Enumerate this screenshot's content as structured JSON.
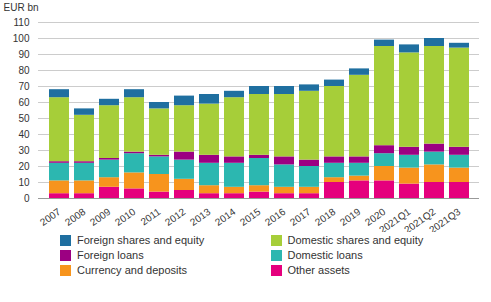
{
  "chart_data": {
    "type": "bar",
    "stacked": true,
    "grid": true,
    "y_label": "EUR bn",
    "categories": [
      "2007",
      "2008",
      "2009",
      "2010",
      "2011",
      "2012",
      "2013",
      "2014",
      "2015",
      "2016",
      "2017",
      "2018",
      "2019",
      "2020",
      "2021Q1",
      "2021Q2",
      "2021Q3"
    ],
    "ylim": [
      0,
      110
    ],
    "yticks": [
      0,
      10,
      20,
      30,
      40,
      50,
      60,
      70,
      80,
      90,
      100,
      110
    ],
    "series": [
      {
        "name": "Other assets",
        "color": "#e5007d",
        "values": [
          3,
          3,
          7,
          6,
          4,
          5,
          3,
          3,
          4,
          3,
          3,
          10,
          11,
          11,
          9,
          10,
          10
        ]
      },
      {
        "name": "Currency and deposits",
        "color": "#f7941d",
        "values": [
          8,
          8,
          6,
          10,
          11,
          7,
          5,
          4,
          4,
          4,
          4,
          3,
          3,
          9,
          10,
          11,
          9
        ]
      },
      {
        "name": "Domestic loans",
        "color": "#2cb7b0",
        "values": [
          11,
          11,
          11,
          12,
          11,
          12,
          14,
          15,
          17,
          14,
          13,
          9,
          8,
          8,
          8,
          8,
          8
        ]
      },
      {
        "name": "Foreign loans",
        "color": "#9c0082",
        "values": [
          1,
          1,
          1,
          1,
          1,
          5,
          5,
          4,
          2,
          5,
          4,
          4,
          4,
          5,
          5,
          5,
          5
        ]
      },
      {
        "name": "Domestic shares and equity",
        "color": "#a6ce39",
        "values": [
          40,
          29,
          33,
          34,
          29,
          29,
          32,
          37,
          38,
          39,
          43,
          44,
          51,
          62,
          59,
          61,
          62
        ]
      },
      {
        "name": "Foreign shares and equity",
        "color": "#1f6fa0",
        "values": [
          5,
          4,
          4,
          5,
          4,
          6,
          6,
          4,
          5,
          5,
          4,
          4,
          4,
          4,
          5,
          5,
          3
        ]
      }
    ]
  }
}
